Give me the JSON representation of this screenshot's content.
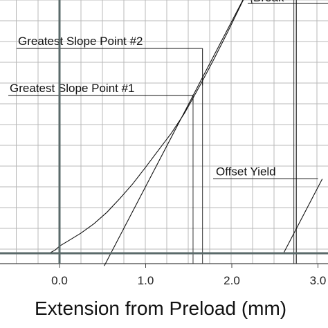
{
  "chart_data": {
    "type": "line",
    "xlabel": "Extension from Preload (mm)",
    "xlim": [
      -0.7,
      3.05
    ],
    "ylim": [
      -0.09,
      1.0
    ],
    "x_ticks": [
      {
        "value": 0.0,
        "label": "0.0"
      },
      {
        "value": 1.0,
        "label": "1.0"
      },
      {
        "value": 2.0,
        "label": "2.0"
      },
      {
        "value": 3.0,
        "label": "3.0"
      }
    ],
    "grid": true,
    "series": [
      {
        "role": "load-extension-curve",
        "x": [
          -0.12,
          -0.05,
          0.0,
          0.1,
          0.25,
          0.4,
          0.55,
          0.7,
          0.85,
          1.0,
          1.15,
          1.3,
          1.45,
          1.55,
          1.65,
          1.8,
          1.95,
          2.1,
          2.2
        ],
        "y": [
          0.0,
          0.012,
          0.026,
          0.045,
          0.074,
          0.108,
          0.15,
          0.2,
          0.254,
          0.315,
          0.378,
          0.44,
          0.512,
          0.568,
          0.625,
          0.715,
          0.808,
          0.905,
          0.97
        ]
      },
      {
        "role": "greatest-slope-line",
        "x": [
          0.52,
          2.2
        ],
        "y": [
          -0.046,
          0.97
        ]
      },
      {
        "role": "offset-line",
        "x": [
          2.6,
          3.05
        ],
        "y": [
          0.0,
          0.272
        ]
      }
    ],
    "reference_lines": {
      "vertical_x": [
        1.55,
        1.66,
        2.72,
        2.75
      ],
      "horizontal_y": [
        0.0
      ]
    },
    "annotations": [
      {
        "text": "Greatest Slope Point #2",
        "x": 1.66,
        "y": 0.614
      },
      {
        "text": "Greatest Slope Point #1",
        "x": 1.55,
        "y": 0.55
      },
      {
        "text": "Offset Yield",
        "x": 3.0,
        "y": 0.272
      },
      {
        "text": "Break",
        "x": 2.75,
        "y": 1.0
      }
    ]
  }
}
